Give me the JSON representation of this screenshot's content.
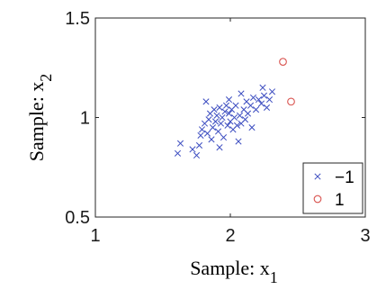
{
  "chart_data": {
    "type": "scatter",
    "xlabel": "Sample: x",
    "xlabel_sub": "1",
    "ylabel": "Sample: x",
    "ylabel_sub": "2",
    "xlim": [
      1,
      3
    ],
    "ylim": [
      0.5,
      1.5
    ],
    "xticks": [
      "1",
      "2",
      "3"
    ],
    "yticks": [
      "0.5",
      "1",
      "1.5"
    ],
    "grid": false,
    "legend_position": "bottom-right",
    "series": [
      {
        "name": "−1",
        "marker": "x",
        "color": "#3b4cc0",
        "points": [
          [
            1.61,
            0.82
          ],
          [
            1.63,
            0.87
          ],
          [
            1.72,
            0.84
          ],
          [
            1.75,
            0.81
          ],
          [
            1.77,
            0.86
          ],
          [
            1.78,
            0.91
          ],
          [
            1.79,
            0.94
          ],
          [
            1.81,
            0.97
          ],
          [
            1.83,
            0.92
          ],
          [
            1.84,
            0.99
          ],
          [
            1.85,
            1.02
          ],
          [
            1.86,
            0.89
          ],
          [
            1.87,
            0.95
          ],
          [
            1.88,
            1.04
          ],
          [
            1.89,
            0.98
          ],
          [
            1.9,
            1.01
          ],
          [
            1.91,
            0.93
          ],
          [
            1.92,
            1.05
          ],
          [
            1.93,
            0.97
          ],
          [
            1.94,
            1.0
          ],
          [
            1.95,
            0.9
          ],
          [
            1.96,
            1.03
          ],
          [
            1.97,
            1.06
          ],
          [
            1.98,
            0.96
          ],
          [
            1.99,
            1.02
          ],
          [
            2.0,
            0.98
          ],
          [
            2.01,
            1.04
          ],
          [
            2.02,
            0.94
          ],
          [
            2.03,
            1.0
          ],
          [
            2.04,
            1.06
          ],
          [
            2.05,
            0.96
          ],
          [
            2.06,
            0.88
          ],
          [
            2.07,
            1.01
          ],
          [
            2.08,
            0.97
          ],
          [
            2.1,
            1.04
          ],
          [
            2.11,
            0.99
          ],
          [
            2.12,
            1.08
          ],
          [
            2.13,
            1.02
          ],
          [
            2.15,
            1.06
          ],
          [
            2.17,
            1.1
          ],
          [
            2.19,
            1.04
          ],
          [
            2.21,
            1.09
          ],
          [
            2.23,
            1.07
          ],
          [
            2.25,
            1.11
          ],
          [
            2.27,
            1.05
          ],
          [
            2.29,
            1.09
          ],
          [
            2.31,
            1.13
          ],
          [
            2.08,
            1.12
          ],
          [
            1.82,
            1.08
          ],
          [
            1.99,
            1.09
          ],
          [
            2.16,
            0.95
          ],
          [
            1.92,
            0.85
          ],
          [
            2.24,
            1.15
          ]
        ]
      },
      {
        "name": "1",
        "marker": "o",
        "color": "#d9534f",
        "points": [
          [
            2.39,
            1.28
          ],
          [
            2.45,
            1.08
          ]
        ]
      }
    ]
  }
}
